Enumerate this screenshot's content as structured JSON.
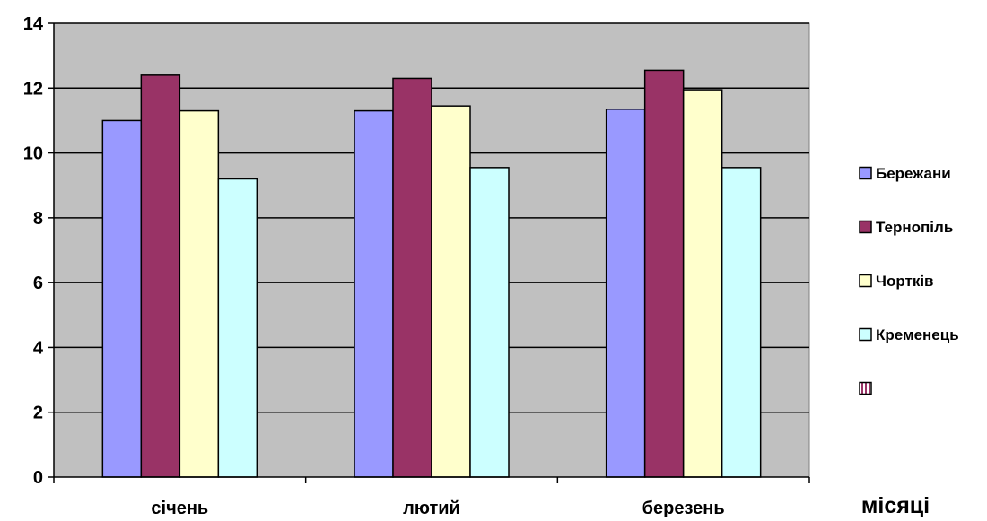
{
  "chart_data": {
    "type": "bar",
    "title": "",
    "xlabel": "місяці",
    "ylabel": "",
    "categories": [
      "січень",
      "лютий",
      "березень"
    ],
    "ylim": [
      0,
      14
    ],
    "yticks": [
      0,
      2,
      4,
      6,
      8,
      10,
      12,
      14
    ],
    "grid": true,
    "legend_position": "right",
    "plot_background": "#c0c0c0",
    "series": [
      {
        "name": "Бережани",
        "values": [
          11.0,
          11.3,
          11.35
        ],
        "color": "#9999ff"
      },
      {
        "name": "Тернопіль",
        "values": [
          12.4,
          12.3,
          12.55
        ],
        "color": "#993366"
      },
      {
        "name": "Чортків",
        "values": [
          11.3,
          11.45,
          11.95
        ],
        "color": "#ffffcc"
      },
      {
        "name": "Кременець",
        "values": [
          9.2,
          9.55,
          9.55
        ],
        "color": "#ccffff"
      }
    ],
    "legend_extra_entry": {
      "name": "",
      "color": "#993366",
      "pattern": "striped"
    }
  }
}
